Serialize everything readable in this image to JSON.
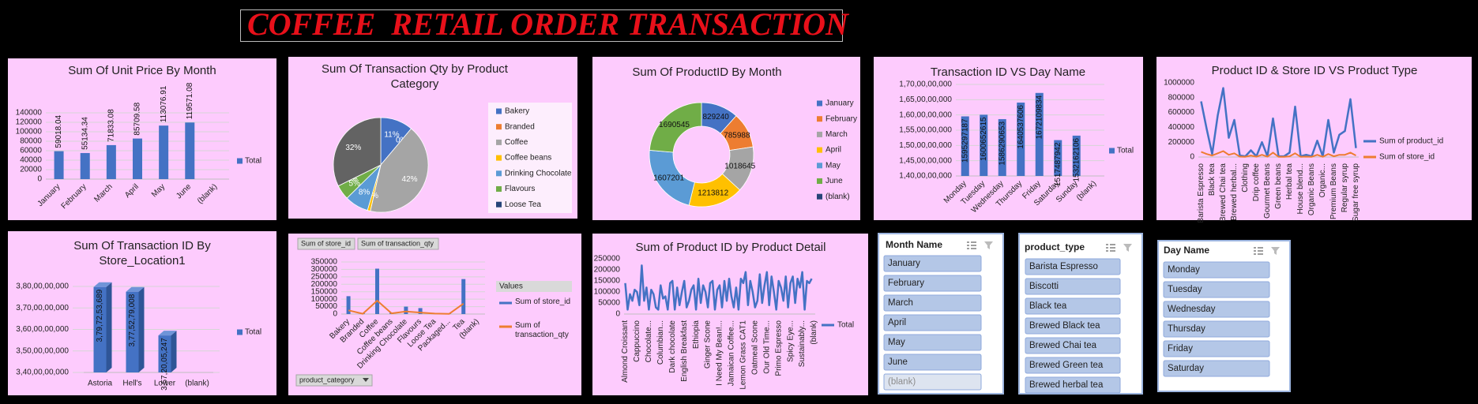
{
  "title": "COFFEE  RETAIL ORDER TRANSACTION",
  "chart_data": [
    {
      "type": "bar",
      "title": "Sum Of Unit Price By Month",
      "categories": [
        "January",
        "February",
        "March",
        "April",
        "May",
        "June",
        "(blank)"
      ],
      "series": [
        {
          "name": "Total",
          "color": "#4472c4",
          "values": [
            59018.04,
            55134.34,
            71833.08,
            85709.58,
            113076.91,
            119571.08,
            null
          ]
        }
      ],
      "ylim": [
        0,
        140000
      ],
      "yticks": [
        0,
        20000,
        40000,
        60000,
        80000,
        100000,
        120000,
        140000
      ],
      "grid": true,
      "data_labels": true,
      "legend": "right"
    },
    {
      "type": "pie",
      "title": "Sum Of Transaction Qty by Product Category",
      "categories": [
        "Bakery",
        "Branded",
        "Coffee",
        "Coffee beans",
        "Drinking Chocolate",
        "Flavours",
        "Loose Tea",
        null,
        null
      ],
      "values": [
        11,
        0,
        42,
        1,
        8,
        5,
        0,
        0,
        32
      ],
      "value_labels": [
        "11%",
        "0%",
        "42%",
        "1%",
        "8%",
        "5%",
        "0%",
        "0%",
        "32%"
      ],
      "colors": [
        "#4472c4",
        "#ed7d31",
        "#a5a5a5",
        "#ffc000",
        "#5b9bd5",
        "#70ad47",
        "#264478",
        "#9e480e",
        "#636363"
      ],
      "legend": "right"
    },
    {
      "type": "doughnut",
      "title": "Sum Of ProductID By Month",
      "categories": [
        "January",
        "February",
        "March",
        "April",
        "May",
        "June",
        "(blank)"
      ],
      "values": [
        829240,
        785988,
        1018645,
        1213812,
        1607201,
        1690545,
        null
      ],
      "colors": [
        "#4472c4",
        "#ed7d31",
        "#a5a5a5",
        "#ffc000",
        "#5b9bd5",
        "#70ad47",
        "#264478"
      ],
      "legend": "right"
    },
    {
      "type": "bar",
      "title": "Transaction ID VS Day Name",
      "categories": [
        "Monday",
        "Tuesday",
        "Wednesday",
        "Thursday",
        "Friday",
        "Saturday",
        "Sunday",
        "(blank)"
      ],
      "series": [
        {
          "name": "Total",
          "color": "#4472c4",
          "values": [
            1595297187,
            1600652615,
            1586290653,
            1640537606,
            1672109834,
            1517487942,
            1532162106,
            null
          ]
        }
      ],
      "ylim": [
        1400000000,
        1700000000
      ],
      "yticks": [
        {
          "value": 1400000000,
          "label": "1,40,00,00,000"
        },
        {
          "value": 1450000000,
          "label": "1,45,00,00,000"
        },
        {
          "value": 1500000000,
          "label": "1,50,00,00,000"
        },
        {
          "value": 1550000000,
          "label": "1,55,00,00,000"
        },
        {
          "value": 1600000000,
          "label": "1,60,00,00,000"
        },
        {
          "value": 1650000000,
          "label": "1,65,00,00,000"
        },
        {
          "value": 1700000000,
          "label": "1,70,00,00,000"
        }
      ],
      "grid": true,
      "data_labels": true,
      "legend": "right"
    },
    {
      "type": "line",
      "title": "Product ID & Store ID VS Product Type",
      "categories": [
        "Barista Espresso",
        null,
        "Black tea",
        null,
        "Brewed Chai tea",
        null,
        "Brewed herbal...",
        null,
        "Clothing",
        null,
        "Drip coffee",
        null,
        "Gourmet Beans",
        null,
        "Green beans",
        null,
        "Herbal tea",
        null,
        "House blend...",
        null,
        "Organic Beans",
        null,
        "Organic...",
        null,
        "Premium Beans",
        null,
        "Regular syrup",
        null,
        "Sugar free syrup"
      ],
      "series": [
        {
          "name": "Sum of product_id",
          "color": "#4472c4",
          "values": [
            750000,
            380000,
            40000,
            560000,
            930000,
            260000,
            500000,
            20000,
            10000,
            90000,
            10000,
            200000,
            10000,
            520000,
            10000,
            10000,
            60000,
            680000,
            10000,
            30000,
            10000,
            220000,
            10000,
            500000,
            60000,
            300000,
            350000,
            780000,
            120000
          ]
        },
        {
          "name": "Sum of store_id",
          "color": "#ed7d31",
          "values": [
            70000,
            40000,
            20000,
            50000,
            80000,
            30000,
            50000,
            5000,
            3000,
            20000,
            4000,
            30000,
            4000,
            60000,
            3000,
            3000,
            10000,
            50000,
            3000,
            5000,
            3000,
            30000,
            3000,
            40000,
            10000,
            30000,
            30000,
            60000,
            20000
          ]
        }
      ],
      "ylim": [
        0,
        1000000
      ],
      "yticks": [
        0,
        200000,
        400000,
        600000,
        800000,
        1000000
      ],
      "grid": false,
      "legend": "right"
    },
    {
      "type": "bar3d",
      "title": "Sum Of Transaction ID By Store_Location1",
      "categories": [
        "Astoria",
        "Hell's",
        "Lower",
        "(blank)"
      ],
      "series": [
        {
          "name": "Total",
          "color": "#4472c4",
          "values": [
            3797253689,
            3775279008,
            3572005247,
            null
          ],
          "value_labels": [
            "3,79,72,53,689",
            "3,77,52,79,008",
            "3,57,20,05,247",
            null
          ]
        }
      ],
      "ylim": [
        3400000000,
        3800000000
      ],
      "yticks": [
        {
          "value": 3400000000,
          "label": "3,40,00,00,000"
        },
        {
          "value": 3500000000,
          "label": "3,50,00,00,000"
        },
        {
          "value": 3600000000,
          "label": "3,60,00,00,000"
        },
        {
          "value": 3700000000,
          "label": "3,70,00,00,000"
        },
        {
          "value": 3800000000,
          "label": "3,80,00,00,000"
        }
      ],
      "grid": true,
      "data_labels": true,
      "legend": "right"
    },
    {
      "type": "combo",
      "field_buttons": [
        "Sum of store_id",
        "Sum of transaction_qty"
      ],
      "filter_button": "product_category",
      "legend_title": "Values",
      "categories": [
        "Bakery",
        "Branded",
        "Coffee",
        "Coffee beans",
        "Drinking Chocolate",
        "Flavours",
        "Loose Tea",
        "Packaged...",
        "Tea",
        "(blank)"
      ],
      "series": [
        {
          "name": "Sum of store_id",
          "type": "bar",
          "color": "#4472c4",
          "values": [
            120000,
            5000,
            305000,
            10000,
            50000,
            40000,
            5000,
            2000,
            235000,
            null
          ]
        },
        {
          "name": "Sum of transaction_qty",
          "type": "line",
          "color": "#ed7d31",
          "values": [
            25000,
            2000,
            90000,
            5000,
            17000,
            10000,
            3000,
            1000,
            70000,
            null
          ]
        }
      ],
      "ylim": [
        0,
        350000
      ],
      "yticks": [
        0,
        50000,
        100000,
        150000,
        200000,
        250000,
        300000,
        350000
      ],
      "grid": true,
      "legend": "right"
    },
    {
      "type": "line",
      "title": "Sum of Product ID by Product Detail",
      "categories": [
        "Almond Croissant",
        null,
        null,
        null,
        null,
        "Cappuccino",
        null,
        null,
        null,
        null,
        "Chocolate...",
        null,
        null,
        null,
        null,
        "Columbian...",
        null,
        null,
        null,
        null,
        "Dark chocolate",
        null,
        null,
        null,
        null,
        "English Breakfast",
        null,
        null,
        null,
        null,
        "Ethiopia",
        null,
        null,
        null,
        null,
        "Ginger Scone",
        null,
        null,
        null,
        null,
        "I Need My Bean!...",
        null,
        null,
        null,
        null,
        "Jamaican Coffee...",
        null,
        null,
        null,
        null,
        "Lemon Grass CAT1",
        null,
        null,
        null,
        null,
        "Oatmeal Scone",
        null,
        null,
        null,
        null,
        "Our Old Time...",
        null,
        null,
        null,
        null,
        "Primo Espresso",
        null,
        null,
        null,
        null,
        "Spicy Eye...",
        null,
        null,
        null,
        null,
        "Sustainably...",
        null,
        null,
        null,
        null,
        "(blank)"
      ],
      "series": [
        {
          "name": "Total",
          "color": "#4472c4",
          "values": [
            140000,
            20000,
            90000,
            60000,
            110000,
            100000,
            40000,
            220000,
            60000,
            120000,
            20000,
            110000,
            90000,
            30000,
            20000,
            130000,
            70000,
            80000,
            20000,
            140000,
            150000,
            20000,
            120000,
            40000,
            100000,
            150000,
            30000,
            60000,
            110000,
            130000,
            20000,
            160000,
            50000,
            130000,
            100000,
            30000,
            140000,
            150000,
            20000,
            110000,
            130000,
            30000,
            150000,
            60000,
            160000,
            80000,
            30000,
            120000,
            20000,
            160000,
            140000,
            190000,
            40000,
            150000,
            100000,
            30000,
            60000,
            180000,
            50000,
            130000,
            190000,
            40000,
            170000,
            100000,
            20000,
            150000,
            120000,
            60000,
            170000,
            30000,
            140000,
            170000,
            50000,
            160000,
            120000,
            190000,
            20000,
            150000,
            140000,
            160000,
            null
          ]
        }
      ],
      "ylim": [
        0,
        250000
      ],
      "yticks": [
        0,
        50000,
        100000,
        150000,
        200000,
        250000
      ],
      "grid": false,
      "legend": "right"
    }
  ],
  "slicers": [
    {
      "title": "Month Name",
      "items": [
        {
          "label": "January",
          "has_data": true
        },
        {
          "label": "February",
          "has_data": true
        },
        {
          "label": "March",
          "has_data": true
        },
        {
          "label": "April",
          "has_data": true
        },
        {
          "label": "May",
          "has_data": true
        },
        {
          "label": "June",
          "has_data": true
        },
        {
          "label": "(blank)",
          "has_data": false
        }
      ]
    },
    {
      "title": "product_type",
      "items": [
        {
          "label": "Barista Espresso",
          "has_data": true
        },
        {
          "label": "Biscotti",
          "has_data": true
        },
        {
          "label": "Black tea",
          "has_data": true
        },
        {
          "label": "Brewed Black tea",
          "has_data": true
        },
        {
          "label": "Brewed Chai tea",
          "has_data": true
        },
        {
          "label": "Brewed Green tea",
          "has_data": true
        },
        {
          "label": "Brewed herbal tea",
          "has_data": true
        }
      ]
    },
    {
      "title": "Day Name",
      "items": [
        {
          "label": "Monday",
          "has_data": true
        },
        {
          "label": "Tuesday",
          "has_data": true
        },
        {
          "label": "Wednesday",
          "has_data": true
        },
        {
          "label": "Thursday",
          "has_data": true
        },
        {
          "label": "Friday",
          "has_data": true
        },
        {
          "label": "Saturday",
          "has_data": true
        }
      ]
    }
  ]
}
